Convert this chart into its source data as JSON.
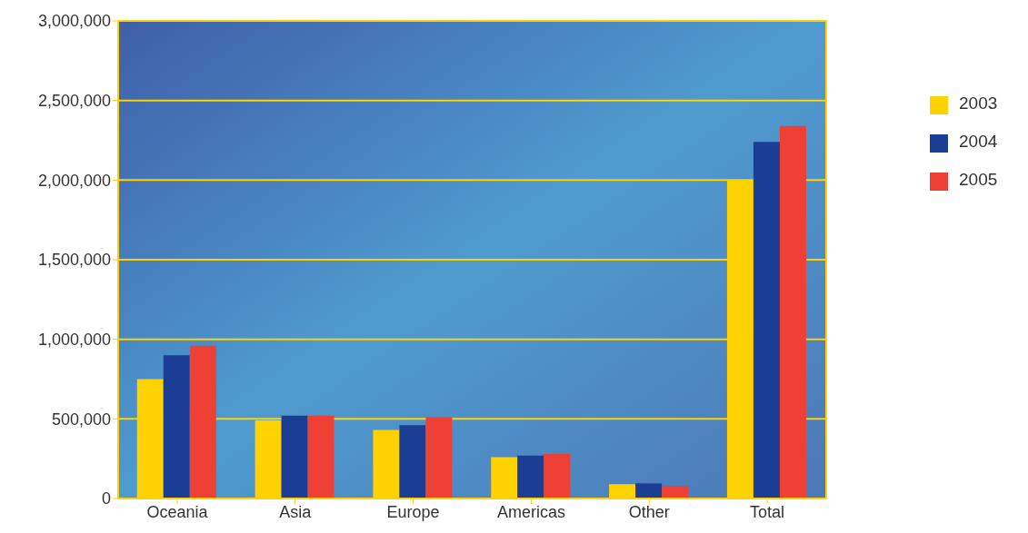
{
  "chart_data": {
    "type": "bar",
    "categories": [
      "Oceania",
      "Asia",
      "Europe",
      "Americas",
      "Other",
      "Total"
    ],
    "series": [
      {
        "name": "2003",
        "color": "#ffd200",
        "values": [
          750000,
          490000,
          430000,
          260000,
          90000,
          2000000
        ]
      },
      {
        "name": "2004",
        "color": "#1b3d94",
        "values": [
          900000,
          520000,
          460000,
          270000,
          95000,
          2240000
        ]
      },
      {
        "name": "2005",
        "color": "#ee4035",
        "values": [
          960000,
          520000,
          510000,
          280000,
          80000,
          2340000
        ]
      }
    ],
    "ylim": [
      0,
      3000000
    ],
    "yticks": [
      0,
      {
        "value": 500000,
        "label": "500,000"
      },
      {
        "value": 1000000,
        "label": "1,000,000"
      },
      {
        "value": 1500000,
        "label": "1,500,000"
      },
      {
        "value": 2000000,
        "label": "2,000,000"
      },
      {
        "value": 2500000,
        "label": "2,500,000"
      },
      {
        "value": 3000000,
        "label": "3,000,000"
      }
    ],
    "grid": "y",
    "legend": "right"
  }
}
